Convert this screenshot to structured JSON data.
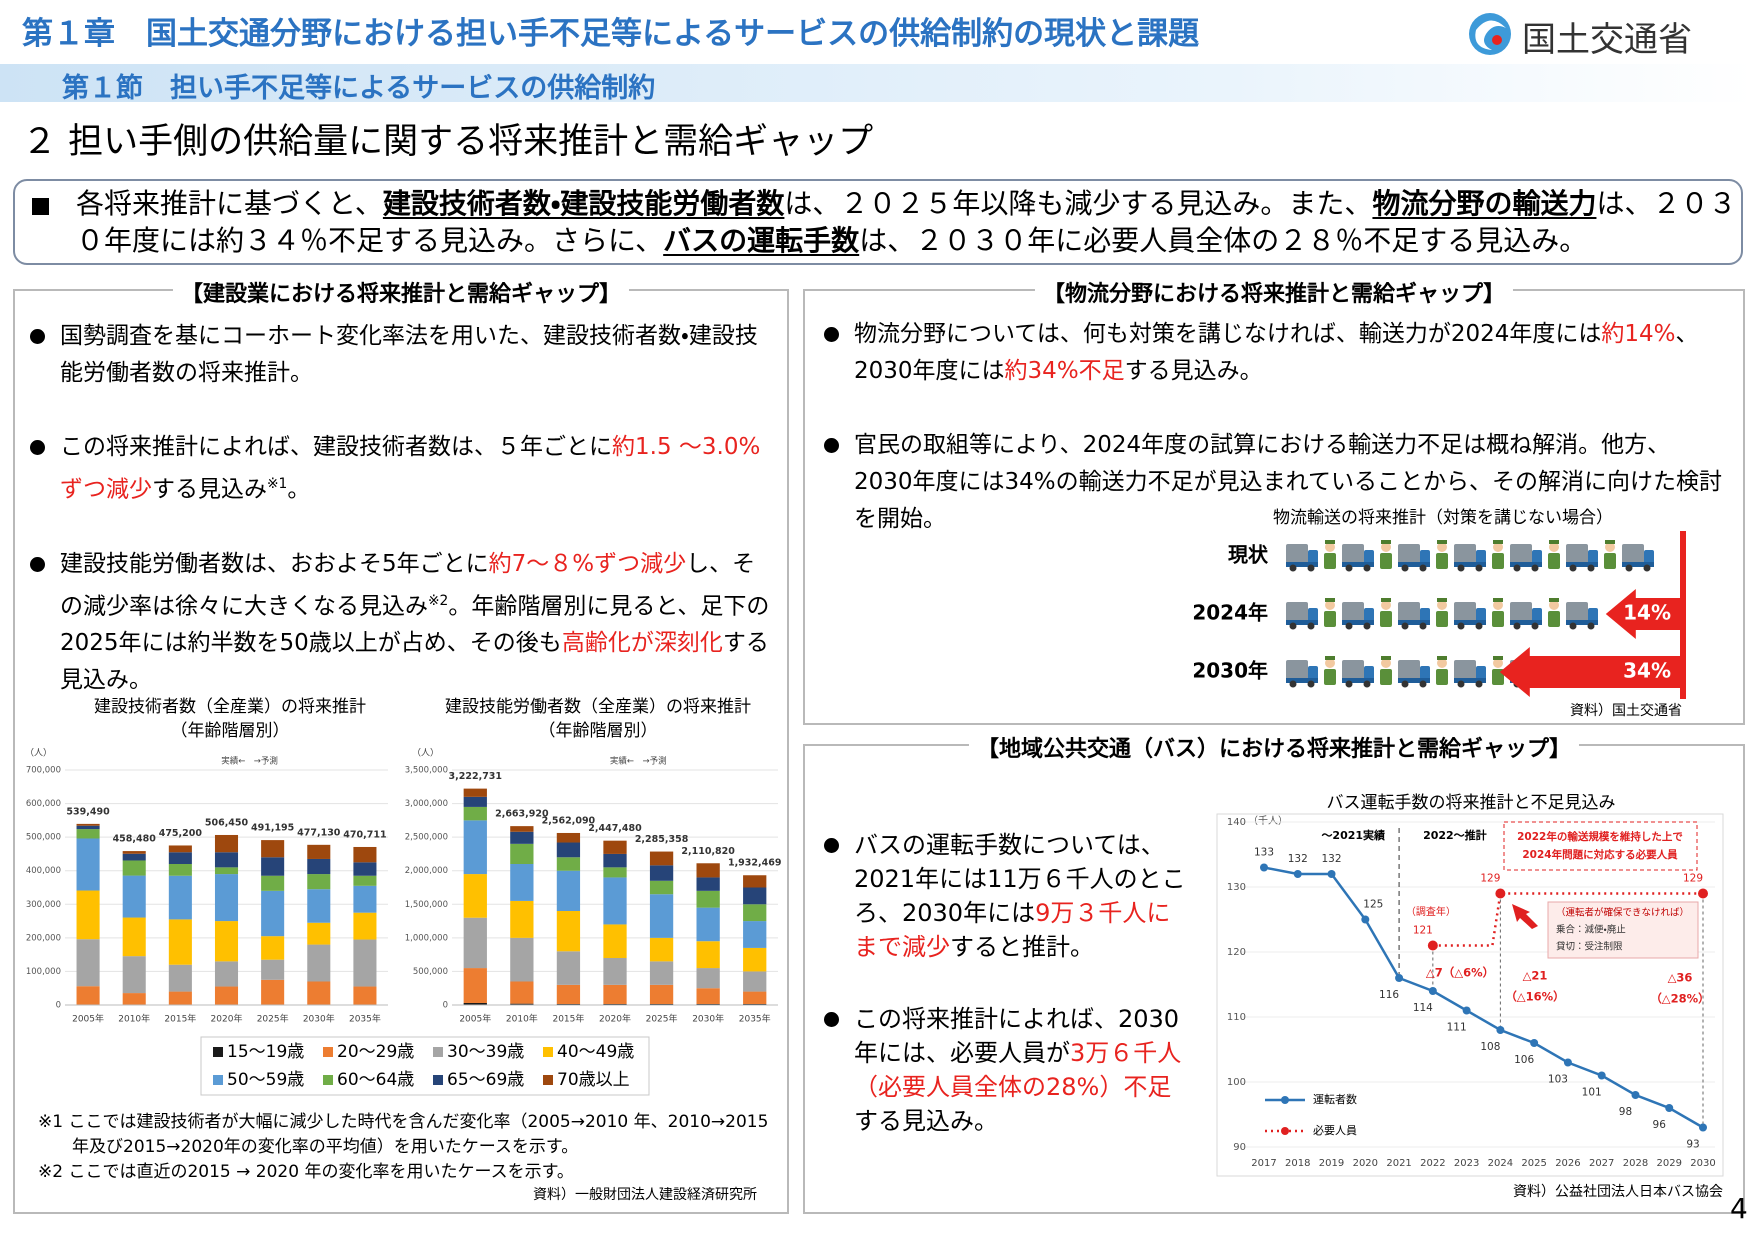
{
  "header": {
    "chapter": "第１章　国土交通分野における担い手不足等によるサービスの供給制約の現状と課題",
    "section": "第１節　担い手不足等によるサービスの供給制約",
    "ministry": "国土交通省"
  },
  "title": "２ 担い手側の供給量に関する将来推計と需給ギャップ",
  "summary": [
    {
      "text": "各将来推計に基づくと、"
    },
    {
      "text": "建設技術者数・建設技能労働者数",
      "underline": true
    },
    {
      "text": "は、２０２５年以降も減少する見込み。また、"
    },
    {
      "text": "物流分野の輸送力",
      "underline": true
    },
    {
      "text": "は、２０３０年度には約３４％不足する見込み。さらに、"
    },
    {
      "text": "バスの運転手数",
      "underline": true
    },
    {
      "text": "は、２０３０年に必要人員全体の２８％不足する見込み。"
    }
  ],
  "construction": {
    "heading": "【建設業における将来推計と需給ギャップ】",
    "bullets": [
      [
        {
          "text": "国勢調査を基にコーホート変化率法を用いた、建設技術者数・建設技能労働者数の将来推計。"
        }
      ],
      [
        {
          "text": "この将来推計によれば、建設技術者数は、５年ごとに"
        },
        {
          "text": "約1.5 ～3.0%ずつ減少",
          "red": true
        },
        {
          "text": "する見込み"
        },
        {
          "text": "※1",
          "sup": true
        },
        {
          "text": "。"
        }
      ],
      [
        {
          "text": "建設技能労働者数は、おおよそ5年ごとに"
        },
        {
          "text": "約7～８%ずつ減少",
          "red": true
        },
        {
          "text": "し、その減少率は徐々に大きくなる見込み"
        },
        {
          "text": "※2",
          "sup": true
        },
        {
          "text": "。年齢階層別に見ると、足下の2025年には約半数を50歳以上が占め、その後も"
        },
        {
          "text": "高齢化が深刻化",
          "red": true
        },
        {
          "text": "する見込み。"
        }
      ]
    ],
    "legend": [
      {
        "name": "15～19歳",
        "color": "#1a1a1a"
      },
      {
        "name": "20～29歳",
        "color": "#ed7d31"
      },
      {
        "name": "30～39歳",
        "color": "#a5a5a5"
      },
      {
        "name": "40～49歳",
        "color": "#ffc000"
      },
      {
        "name": "50～59歳",
        "color": "#5b9bd5"
      },
      {
        "name": "60～64歳",
        "color": "#70ad47"
      },
      {
        "name": "65～69歳",
        "color": "#264478"
      },
      {
        "name": "70歳以上",
        "color": "#9e480e"
      }
    ],
    "charts": [
      {
        "type": "bar",
        "stacked": true,
        "title": "建設技術者数（全産業）の将来推計",
        "subtitle": "（年齢階層別）",
        "unit": "（人）",
        "annotation": "実績←　→予測",
        "categories": [
          "2005年",
          "2010年",
          "2015年",
          "2020年",
          "2025年",
          "2030年",
          "2035年"
        ],
        "ylim": [
          0,
          700000
        ],
        "yticks": [
          0,
          {
            "value": 100000,
            "label": "100,000"
          },
          {
            "value": 200000,
            "label": "200,000"
          },
          {
            "value": 300000,
            "label": "300,000"
          },
          {
            "value": 400000,
            "label": "400,000"
          },
          {
            "value": 500000,
            "label": "500,000"
          },
          {
            "value": 600000,
            "label": "600,000"
          },
          {
            "value": 700000,
            "label": "700,000"
          }
        ],
        "series_values": [
          [
            1000,
            500,
            500,
            500,
            500,
            500,
            500
          ],
          [
            55000,
            35000,
            39500,
            54500,
            74500,
            69500,
            54500
          ],
          [
            140000,
            110000,
            80000,
            75000,
            60000,
            110000,
            140000
          ],
          [
            145000,
            115000,
            135000,
            120000,
            70000,
            65000,
            80000
          ],
          [
            155000,
            125000,
            130000,
            140000,
            135000,
            100000,
            80000
          ],
          [
            28000,
            45000,
            35000,
            20000,
            45000,
            45000,
            30000
          ],
          [
            10000,
            20000,
            35000,
            45000,
            55000,
            45000,
            40000
          ],
          [
            5490,
            7980,
            20200,
            51450,
            51195,
            42130,
            45711
          ]
        ],
        "totals": [
          539490,
          458480,
          475200,
          506450,
          491195,
          477130,
          470711
        ],
        "total_labels": [
          "539,490",
          "458,480",
          "475,200",
          "506,450",
          "491,195",
          "477,130",
          "470,711"
        ]
      },
      {
        "type": "bar",
        "stacked": true,
        "title": "建設技能労働者数（全産業）の将来推計",
        "subtitle": "（年齢階層別）",
        "unit": "（人）",
        "annotation": "実績←　→予測",
        "categories": [
          "2005年",
          "2010年",
          "2015年",
          "2020年",
          "2025年",
          "2030年",
          "2035年"
        ],
        "ylim": [
          0,
          3500000
        ],
        "yticks": [
          0,
          {
            "value": 500000,
            "label": "500,000"
          },
          {
            "value": 1000000,
            "label": "1,000,000"
          },
          {
            "value": 1500000,
            "label": "1,500,000"
          },
          {
            "value": 2000000,
            "label": "2,000,000"
          },
          {
            "value": 2500000,
            "label": "2,500,000"
          },
          {
            "value": 3000000,
            "label": "3,000,000"
          },
          {
            "value": 3500000,
            "label": "3,500,000"
          }
        ],
        "series_values": [
          [
            30000,
            20000,
            15000,
            15000,
            15000,
            15000,
            15000
          ],
          [
            520000,
            330000,
            285000,
            285000,
            285000,
            235000,
            185000
          ],
          [
            750000,
            650000,
            500000,
            400000,
            350000,
            300000,
            300000
          ],
          [
            650000,
            550000,
            600000,
            500000,
            350000,
            400000,
            350000
          ],
          [
            800000,
            550000,
            600000,
            700000,
            650000,
            500000,
            400000
          ],
          [
            200000,
            300000,
            200000,
            150000,
            200000,
            250000,
            250000
          ],
          [
            150000,
            180000,
            220000,
            200000,
            230000,
            200000,
            250000
          ],
          [
            122731,
            83920,
            142090,
            197480,
            205358,
            210820,
            182469
          ]
        ],
        "totals": [
          3222731,
          2663920,
          2562090,
          2447480,
          2285358,
          2110820,
          1932469
        ],
        "total_labels": [
          "3,222,731",
          "2,663,920",
          "2,562,090",
          "2,447,480",
          "2,285,358",
          "2,110,820",
          "1,932,469"
        ]
      }
    ],
    "footnotes": [
      "※1 ここでは建設技術者が大幅に減少した時代を含んだ変化率（2005→2010 年、2010→2015 年及び2015→2020年の変化率の平均値）を用いたケースを示す。",
      "※2 ここでは直近の2015 → 2020 年の変化率を用いたケースを示す。"
    ],
    "source": "資料）一般財団法人建設経済研究所"
  },
  "logistics": {
    "heading": "【物流分野における将来推計と需給ギャップ】",
    "bullets": [
      [
        {
          "text": "物流分野については、何も対策を講じなければ、輸送力が2024年度には"
        },
        {
          "text": "約14%",
          "red": true
        },
        {
          "text": "、2030年度には"
        },
        {
          "text": "約34%不足",
          "red": true
        },
        {
          "text": "する見込み。"
        }
      ],
      [
        {
          "text": "官民の取組等により、2024年度の試算における輸送力不足は概ね解消。他方、2030年度には34%の輸送力不足が見込まれていることから、その解消に向けた検討を開始。"
        }
      ]
    ],
    "figure": {
      "title": "物流輸送の将来推計（対策を講じない場合）",
      "rows": [
        {
          "label": "現状"
        },
        {
          "label": "2024年",
          "shortage": 14,
          "shortage_label": "14%"
        },
        {
          "label": "2030年",
          "shortage": 34,
          "shortage_label": "34%"
        }
      ],
      "color": "#e8231f"
    },
    "source": "資料）国土交通省"
  },
  "bus": {
    "heading": "【地域公共交通（バス）における将来推計と需給ギャップ】",
    "bullets": [
      [
        {
          "text": "バスの運転手数については、2021年には11万６千人のところ、2030年には"
        },
        {
          "text": "9万３千人にまで減少",
          "red": true
        },
        {
          "text": "すると推計。"
        }
      ],
      [
        {
          "text": "この将来推計によれば、2030年には、必要人員が"
        },
        {
          "text": "3万６千人（必要人員全体の28%）不足",
          "red": true
        },
        {
          "text": "する見込み。"
        }
      ]
    ],
    "chart": {
      "type": "line",
      "title": "バス運転手数の将来推計と不足見込み",
      "unit": "（千人）",
      "x": [
        2017,
        2018,
        2019,
        2020,
        2021,
        2022,
        2023,
        2024,
        2025,
        2026,
        2027,
        2028,
        2029,
        2030
      ],
      "ylim": [
        90,
        140
      ],
      "yticks": [
        90,
        100,
        110,
        120,
        130,
        140
      ],
      "grid": true,
      "series": [
        {
          "name": "運転者数",
          "color": "#2e75b6",
          "style": "solid",
          "values": [
            133,
            132,
            132,
            125,
            116,
            114,
            111,
            108,
            106,
            103,
            101,
            98,
            96,
            93
          ]
        },
        {
          "name": "必要人員",
          "color": "#e02020",
          "style": "dotted",
          "values": [
            null,
            null,
            null,
            null,
            null,
            121,
            null,
            129,
            null,
            null,
            null,
            null,
            null,
            129
          ]
        }
      ],
      "annotations": {
        "actual": "～2021実績",
        "forecast": "2022～推計",
        "survey_year": "（調査年）",
        "required_note": [
          "2022年の輸送規模を維持した上で",
          "2024年問題に対応する必要人員"
        ],
        "shortfall_note": [
          "（運転者が確保できなければ）",
          "乗合：減便・廃止",
          "貸切：受注制限"
        ],
        "gaps": [
          [
            "△7（△6%）"
          ],
          [
            "△21",
            "（△16%）"
          ],
          [
            "△36",
            "（△28%）"
          ]
        ]
      }
    },
    "source": "資料）公益社団法人日本バス協会"
  },
  "page_number": "4"
}
